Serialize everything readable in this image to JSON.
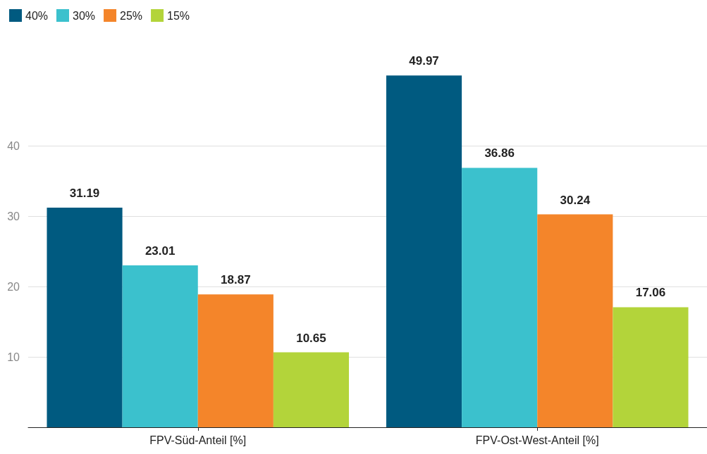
{
  "chart_data": {
    "type": "bar",
    "categories": [
      "FPV-Süd-Anteil [%]",
      "FPV-Ost-West-Anteil [%]"
    ],
    "series": [
      {
        "name": "40%",
        "color": "#005a80",
        "values": [
          31.19,
          49.97
        ]
      },
      {
        "name": "30%",
        "color": "#3bc1cd",
        "values": [
          23.01,
          36.86
        ]
      },
      {
        "name": "25%",
        "color": "#f4852a",
        "values": [
          18.87,
          30.24
        ]
      },
      {
        "name": "15%",
        "color": "#b3d43a",
        "values": [
          10.65,
          17.06
        ]
      }
    ],
    "ylim": [
      0,
      50
    ],
    "yticks": [
      10,
      20,
      30,
      40
    ],
    "grid": "y",
    "legend": "top left",
    "data_labels": true
  }
}
